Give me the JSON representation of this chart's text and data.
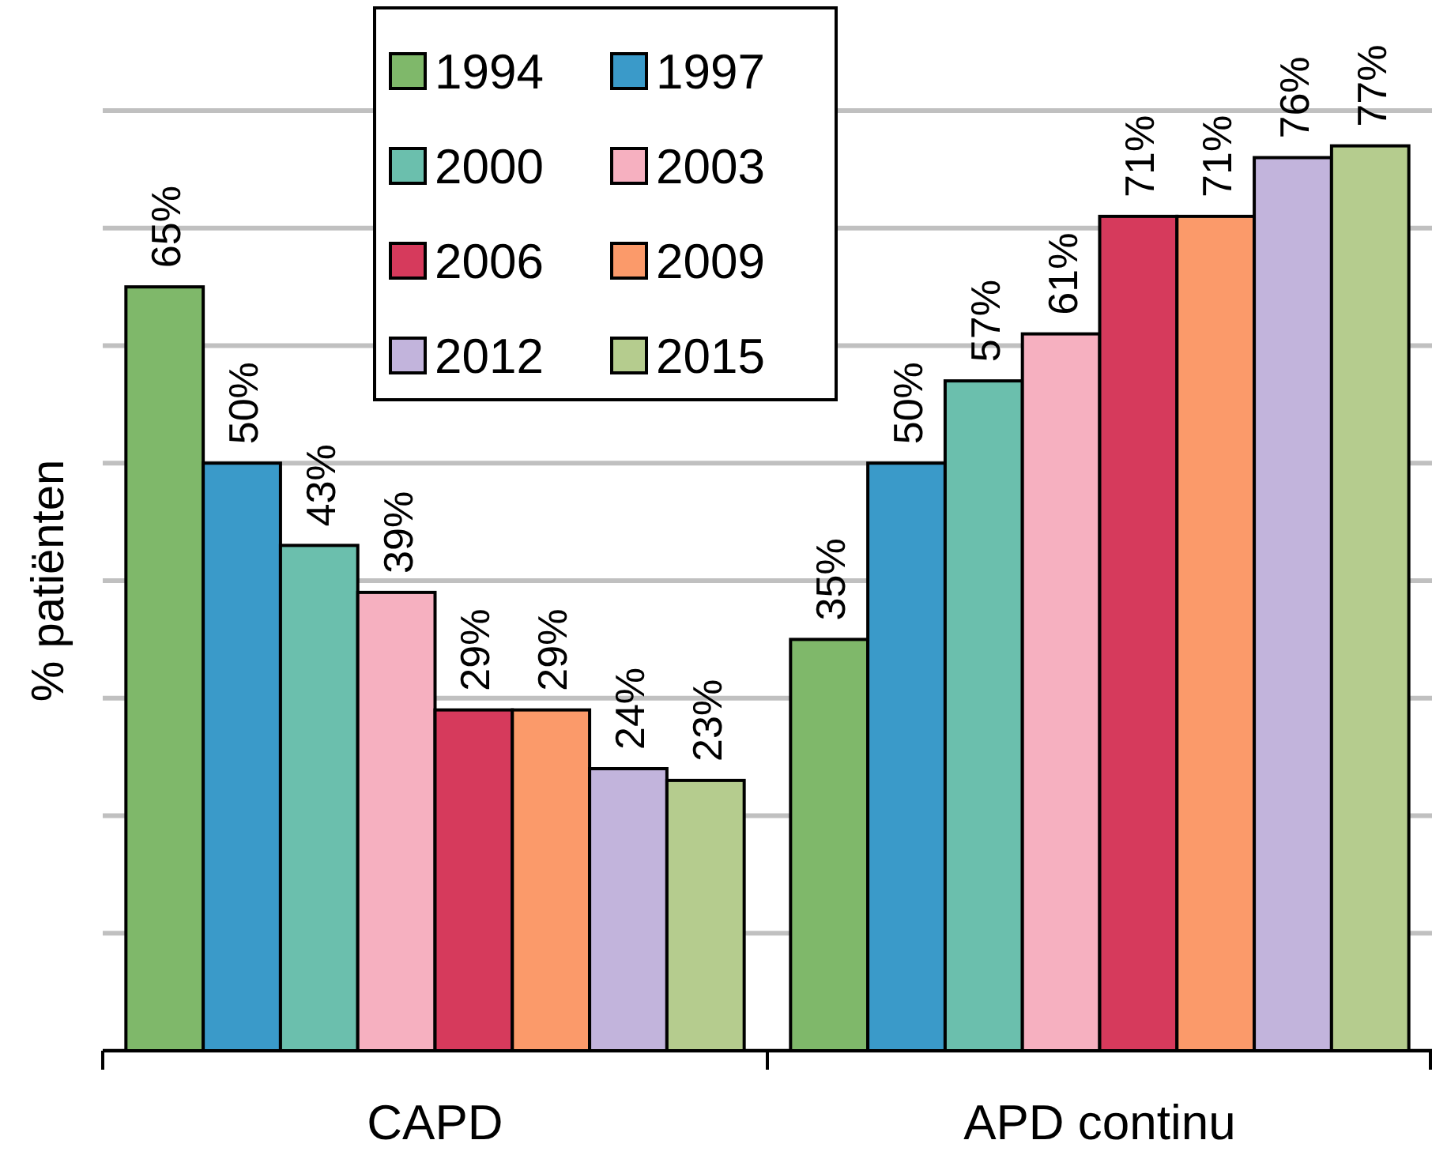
{
  "chart_data": {
    "type": "bar",
    "ylabel": "% patiënten",
    "categories": [
      "CAPD",
      "APD continu"
    ],
    "series": [
      {
        "name": "1994",
        "color": "#7fb86a",
        "values": [
          65,
          35
        ],
        "value_labels": [
          "65%",
          "35%"
        ]
      },
      {
        "name": "1997",
        "color": "#3a9ac9",
        "values": [
          50,
          50
        ],
        "value_labels": [
          "50%",
          "50%"
        ]
      },
      {
        "name": "2000",
        "color": "#6bbfad",
        "values": [
          43,
          57
        ],
        "value_labels": [
          "43%",
          "57%"
        ]
      },
      {
        "name": "2003",
        "color": "#f6b0c0",
        "values": [
          39,
          61
        ],
        "value_labels": [
          "39%",
          "61%"
        ]
      },
      {
        "name": "2006",
        "color": "#d63a5c",
        "values": [
          29,
          71
        ],
        "value_labels": [
          "29%",
          "71%"
        ]
      },
      {
        "name": "2009",
        "color": "#fb9a6a",
        "values": [
          29,
          71
        ],
        "value_labels": [
          "29%",
          "71%"
        ]
      },
      {
        "name": "2012",
        "color": "#c2b4dc",
        "values": [
          24,
          76
        ],
        "value_labels": [
          "24%",
          "76%"
        ]
      },
      {
        "name": "2015",
        "color": "#b5cc8e",
        "values": [
          23,
          77
        ],
        "value_labels": [
          "23%",
          "77%"
        ]
      }
    ],
    "ylim": [
      0,
      80
    ],
    "yticks": [
      {
        "value": 0,
        "label": null
      },
      {
        "value": 10,
        "label": null
      },
      {
        "value": 20,
        "label": null
      },
      {
        "value": 30,
        "label": null
      },
      {
        "value": 40,
        "label": null
      },
      {
        "value": 50,
        "label": null
      },
      {
        "value": 60,
        "label": null
      },
      {
        "value": 70,
        "label": null
      },
      {
        "value": 80,
        "label": null
      }
    ],
    "tick_labels": "x",
    "grid": "y",
    "legend": "top"
  }
}
